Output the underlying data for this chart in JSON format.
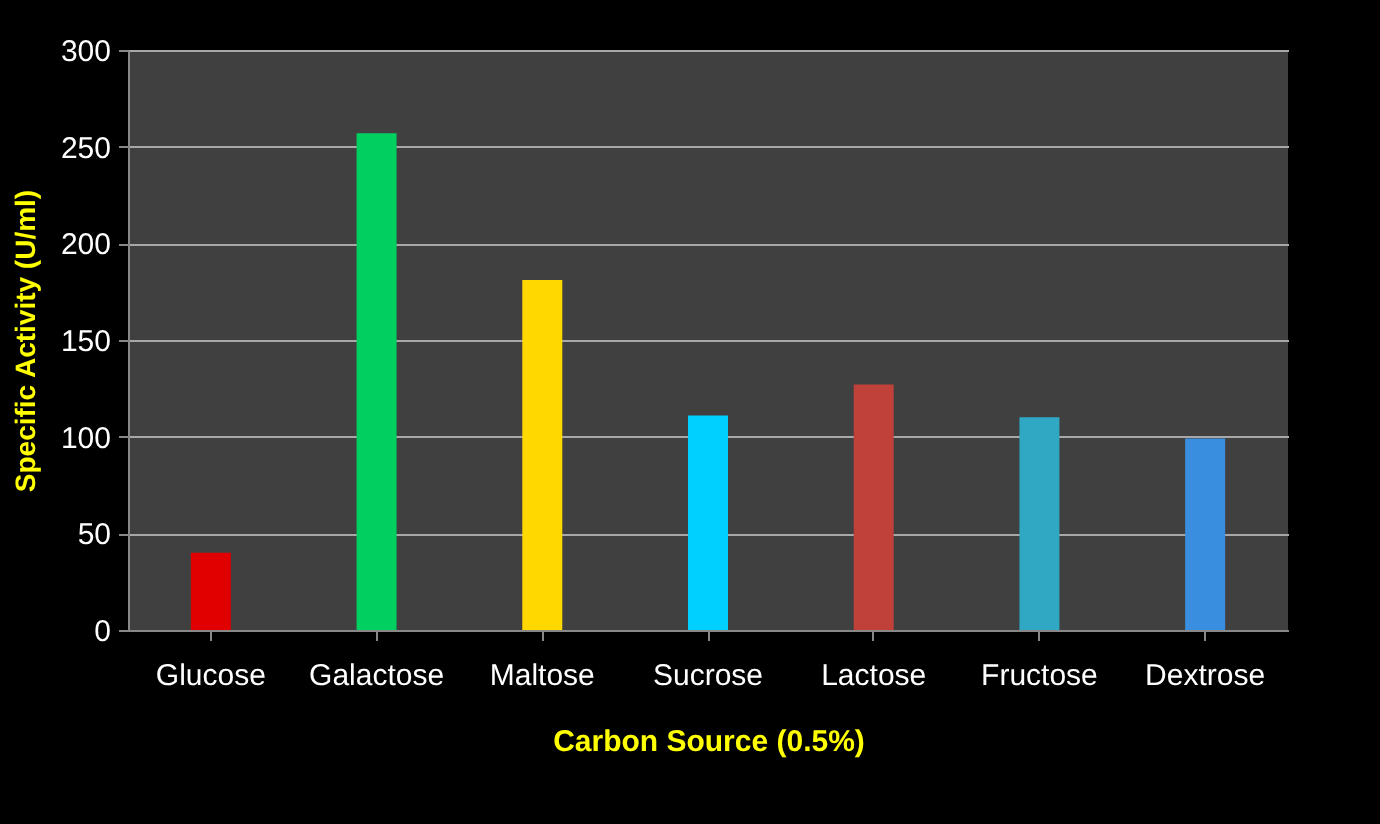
{
  "chart_data": {
    "type": "bar",
    "xlabel": "Carbon Source (0.5%)",
    "ylabel": "Specific Activity (U/ml)",
    "categories": [
      "Glucose",
      "Galactose",
      "Maltose",
      "Sucrose",
      "Lactose",
      "Fructose",
      "Dextrose"
    ],
    "values": [
      40,
      257,
      181,
      111,
      127,
      110,
      99
    ],
    "colors": [
      "#e00000",
      "#00d060",
      "#ffd800",
      "#00d0ff",
      "#c0403a",
      "#30a8c4",
      "#3a8ee0"
    ],
    "ylim": [
      0,
      300
    ],
    "yticks": [
      0,
      50,
      100,
      150,
      200,
      250,
      300
    ],
    "grid": "y",
    "legend": false
  }
}
